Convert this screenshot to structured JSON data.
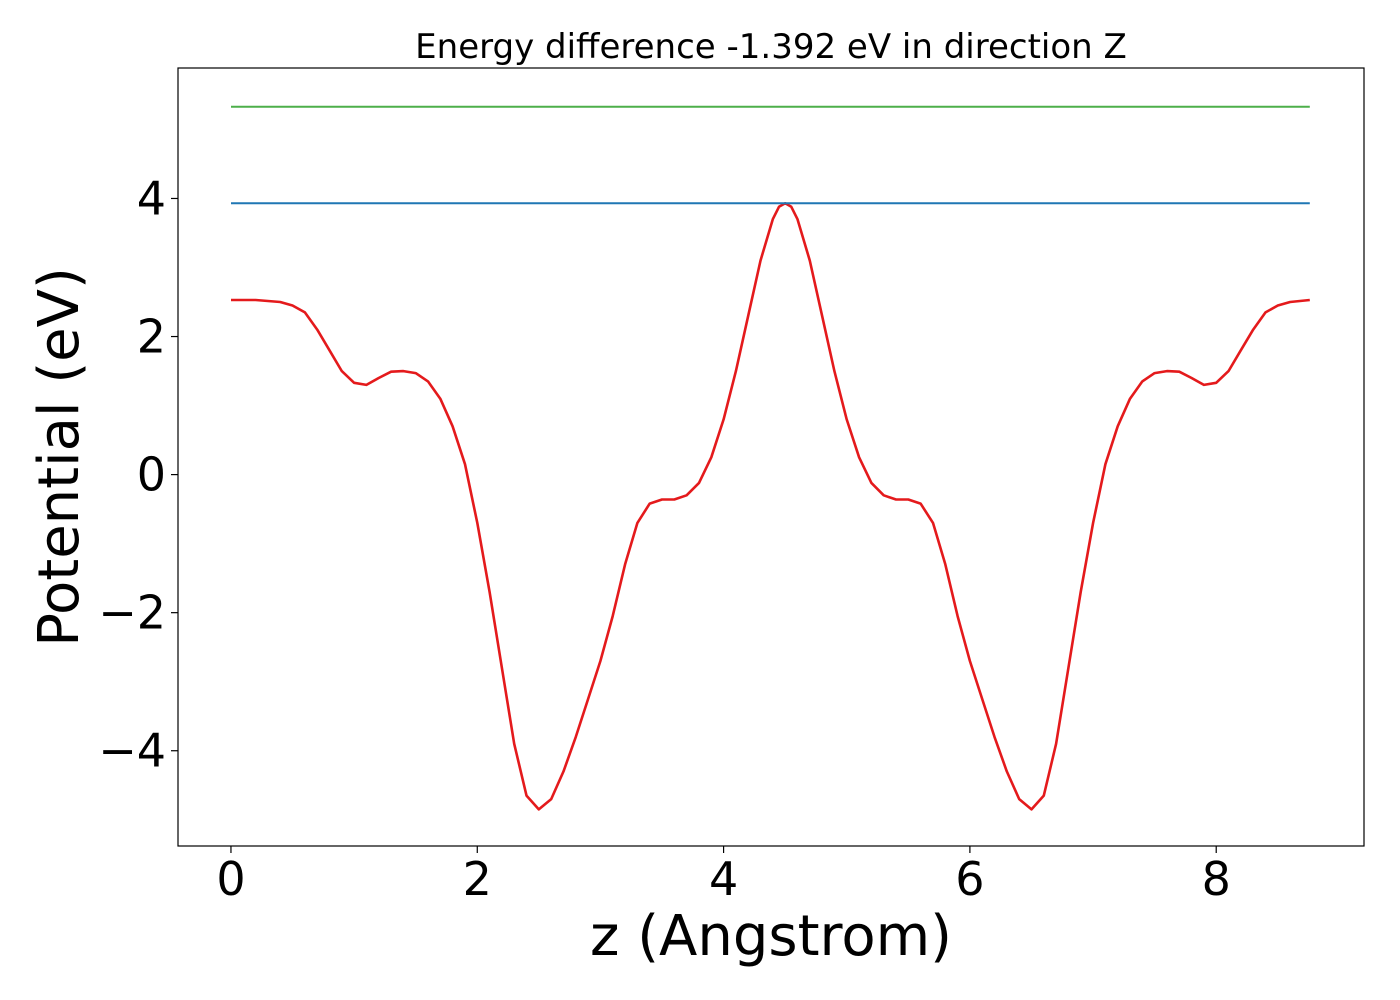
{
  "chart_data": {
    "type": "line",
    "title": "Energy difference -1.392 eV in direction Z",
    "xlabel": "z (Angstrom)",
    "ylabel": "Potential (eV)",
    "xlim": [
      -0.43,
      9.2
    ],
    "ylim": [
      -5.38,
      5.89
    ],
    "xticks": [
      0,
      2,
      4,
      6,
      8
    ],
    "yticks": [
      -4,
      -2,
      0,
      2,
      4
    ],
    "xtick_labels": [
      "0",
      "2",
      "4",
      "6",
      "8"
    ],
    "ytick_labels": [
      "−4",
      "−2",
      "0",
      "2",
      "4"
    ],
    "grid": false,
    "legend": "none",
    "series": [
      {
        "color": "#e41a1c",
        "points": [
          [
            0.0,
            2.53
          ],
          [
            0.2,
            2.53
          ],
          [
            0.4,
            2.5
          ],
          [
            0.5,
            2.45
          ],
          [
            0.6,
            2.35
          ],
          [
            0.7,
            2.1
          ],
          [
            0.8,
            1.8
          ],
          [
            0.9,
            1.5
          ],
          [
            1.0,
            1.33
          ],
          [
            1.1,
            1.3
          ],
          [
            1.2,
            1.4
          ],
          [
            1.3,
            1.49
          ],
          [
            1.4,
            1.5
          ],
          [
            1.5,
            1.47
          ],
          [
            1.6,
            1.35
          ],
          [
            1.7,
            1.1
          ],
          [
            1.8,
            0.7
          ],
          [
            1.9,
            0.15
          ],
          [
            2.0,
            -0.7
          ],
          [
            2.1,
            -1.7
          ],
          [
            2.2,
            -2.8
          ],
          [
            2.3,
            -3.9
          ],
          [
            2.4,
            -4.65
          ],
          [
            2.5,
            -4.85
          ],
          [
            2.6,
            -4.7
          ],
          [
            2.7,
            -4.3
          ],
          [
            2.8,
            -3.8
          ],
          [
            2.9,
            -3.25
          ],
          [
            3.0,
            -2.7
          ],
          [
            3.1,
            -2.05
          ],
          [
            3.2,
            -1.3
          ],
          [
            3.3,
            -0.7
          ],
          [
            3.4,
            -0.42
          ],
          [
            3.5,
            -0.36
          ],
          [
            3.6,
            -0.36
          ],
          [
            3.7,
            -0.3
          ],
          [
            3.8,
            -0.12
          ],
          [
            3.9,
            0.25
          ],
          [
            4.0,
            0.8
          ],
          [
            4.1,
            1.5
          ],
          [
            4.2,
            2.3
          ],
          [
            4.3,
            3.1
          ],
          [
            4.4,
            3.7
          ],
          [
            4.45,
            3.88
          ],
          [
            4.5,
            3.93
          ],
          [
            4.55,
            3.88
          ],
          [
            4.6,
            3.7
          ],
          [
            4.7,
            3.1
          ],
          [
            4.8,
            2.3
          ],
          [
            4.9,
            1.5
          ],
          [
            5.0,
            0.8
          ],
          [
            5.1,
            0.25
          ],
          [
            5.2,
            -0.12
          ],
          [
            5.3,
            -0.3
          ],
          [
            5.4,
            -0.36
          ],
          [
            5.5,
            -0.36
          ],
          [
            5.6,
            -0.42
          ],
          [
            5.7,
            -0.7
          ],
          [
            5.8,
            -1.3
          ],
          [
            5.9,
            -2.05
          ],
          [
            6.0,
            -2.7
          ],
          [
            6.1,
            -3.25
          ],
          [
            6.2,
            -3.8
          ],
          [
            6.3,
            -4.3
          ],
          [
            6.4,
            -4.7
          ],
          [
            6.5,
            -4.85
          ],
          [
            6.6,
            -4.65
          ],
          [
            6.7,
            -3.9
          ],
          [
            6.8,
            -2.8
          ],
          [
            6.9,
            -1.7
          ],
          [
            7.0,
            -0.7
          ],
          [
            7.1,
            0.15
          ],
          [
            7.2,
            0.7
          ],
          [
            7.3,
            1.1
          ],
          [
            7.4,
            1.35
          ],
          [
            7.5,
            1.47
          ],
          [
            7.6,
            1.5
          ],
          [
            7.7,
            1.49
          ],
          [
            7.8,
            1.4
          ],
          [
            7.9,
            1.3
          ],
          [
            8.0,
            1.33
          ],
          [
            8.1,
            1.5
          ],
          [
            8.2,
            1.8
          ],
          [
            8.3,
            2.1
          ],
          [
            8.4,
            2.35
          ],
          [
            8.5,
            2.45
          ],
          [
            8.6,
            2.5
          ],
          [
            8.76,
            2.53
          ]
        ]
      },
      {
        "color": "#1f77b4",
        "points": [
          [
            0.0,
            3.93
          ],
          [
            8.76,
            3.93
          ]
        ]
      },
      {
        "color": "#4daf4a",
        "points": [
          [
            0.0,
            5.33
          ],
          [
            8.76,
            5.33
          ]
        ]
      }
    ]
  }
}
